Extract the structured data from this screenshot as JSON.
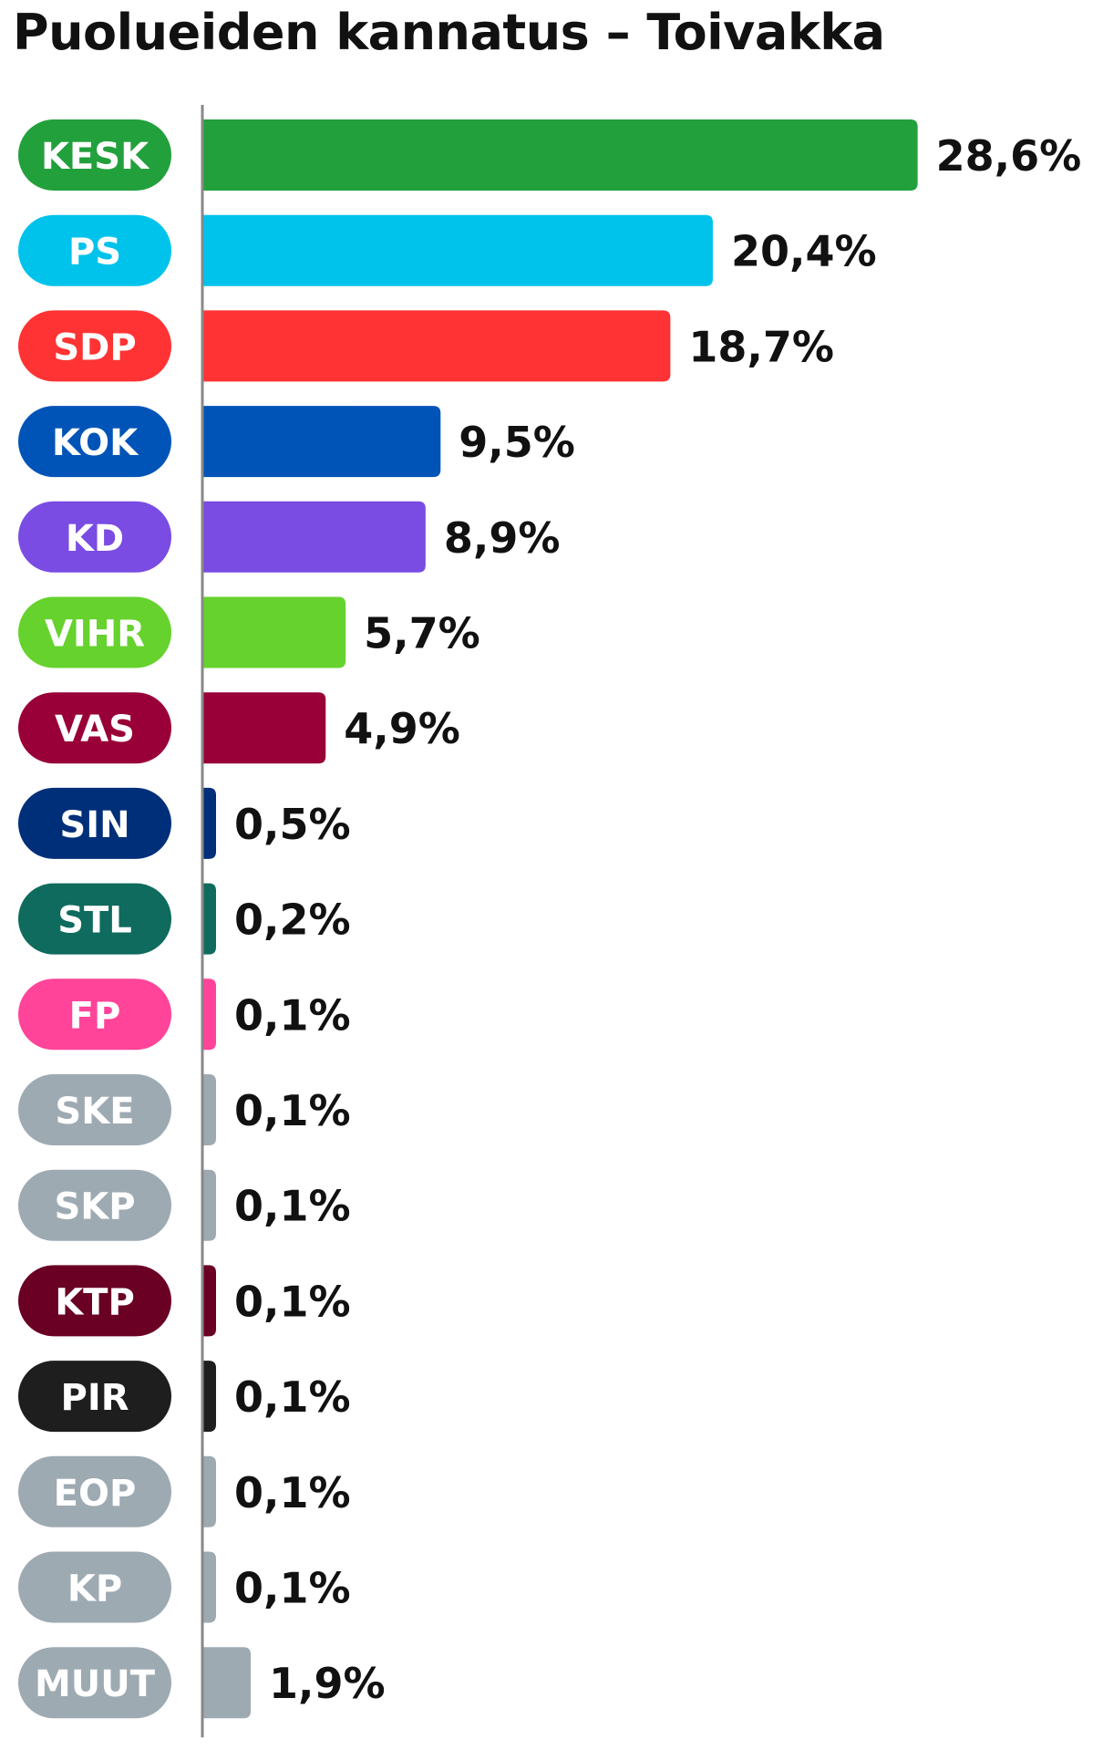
{
  "chart_data": {
    "type": "bar",
    "orientation": "horizontal",
    "title": "Puolueiden kannatus – Toivakka",
    "xlabel": "",
    "ylabel": "",
    "grid": false,
    "categories": [
      "KESK",
      "PS",
      "SDP",
      "KOK",
      "KD",
      "VIHR",
      "VAS",
      "SIN",
      "STL",
      "FP",
      "SKE",
      "SKP",
      "KTP",
      "PIR",
      "EOP",
      "KP",
      "MUUT"
    ],
    "values": [
      28.6,
      20.4,
      18.7,
      9.5,
      8.9,
      5.7,
      4.9,
      0.5,
      0.2,
      0.1,
      0.1,
      0.1,
      0.1,
      0.1,
      0.1,
      0.1,
      1.9
    ],
    "value_labels": [
      "28,6%",
      "20,4%",
      "18,7%",
      "9,5%",
      "8,9%",
      "5,7%",
      "4,9%",
      "0,5%",
      "0,2%",
      "0,1%",
      "0,1%",
      "0,1%",
      "0,1%",
      "0,1%",
      "0,1%",
      "0,1%",
      "1,9%"
    ],
    "colors": [
      "#22a03c",
      "#00c3ec",
      "#ff3333",
      "#0054b8",
      "#7a4ce3",
      "#66d22d",
      "#990038",
      "#002f7a",
      "#0e6b5d",
      "#ff4499",
      "#9eaab2",
      "#9eaab2",
      "#6a0024",
      "#1e1e1e",
      "#9eaab2",
      "#9eaab2",
      "#9eaab2"
    ],
    "label_text_color": "#ffffff",
    "value_text_color": "#111111",
    "axis_color": "#888888"
  }
}
